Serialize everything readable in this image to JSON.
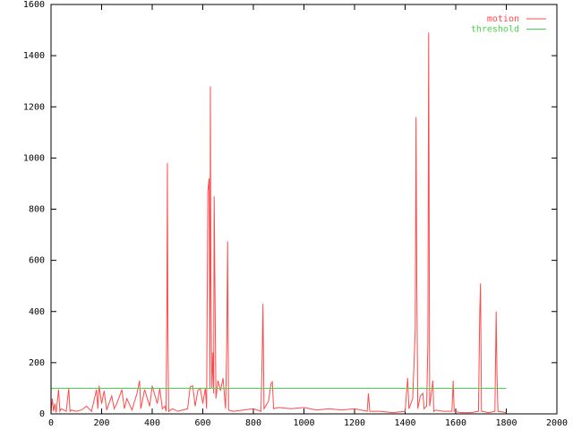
{
  "chart_data": {
    "type": "line",
    "xlim": [
      0,
      2000
    ],
    "xticks": [
      0,
      200,
      400,
      600,
      800,
      1000,
      1200,
      1400,
      1600,
      1800,
      2000
    ],
    "ylim": [
      0,
      1600
    ],
    "yticks": [
      0,
      200,
      400,
      600,
      800,
      1000,
      1200,
      1400,
      1600
    ],
    "legend": "top-right",
    "series": [
      {
        "name": "motion",
        "color": "#ff4a4a",
        "x": [
          0,
          5,
          10,
          15,
          20,
          30,
          35,
          40,
          50,
          60,
          70,
          75,
          80,
          100,
          120,
          140,
          160,
          180,
          185,
          190,
          200,
          210,
          220,
          240,
          250,
          260,
          280,
          290,
          300,
          320,
          340,
          350,
          355,
          370,
          390,
          400,
          420,
          430,
          440,
          450,
          455,
          458,
          460,
          462,
          465,
          480,
          500,
          520,
          540,
          550,
          560,
          570,
          580,
          590,
          600,
          610,
          615,
          620,
          625,
          628,
          630,
          632,
          636,
          640,
          643,
          645,
          648,
          652,
          660,
          670,
          680,
          690,
          695,
          698,
          702,
          720,
          760,
          800,
          830,
          835,
          838,
          842,
          860,
          870,
          875,
          880,
          900,
          950,
          1000,
          1050,
          1100,
          1150,
          1200,
          1250,
          1255,
          1260,
          1300,
          1350,
          1400,
          1410,
          1415,
          1430,
          1440,
          1443,
          1446,
          1450,
          1460,
          1470,
          1475,
          1485,
          1490,
          1493,
          1497,
          1510,
          1513,
          1520,
          1550,
          1585,
          1590,
          1594,
          1620,
          1660,
          1690,
          1695,
          1698,
          1702,
          1730,
          1755,
          1760,
          1763,
          1767,
          1800
        ],
        "values": [
          5,
          60,
          10,
          40,
          5,
          95,
          10,
          20,
          15,
          10,
          100,
          10,
          15,
          10,
          15,
          30,
          10,
          95,
          20,
          110,
          40,
          90,
          15,
          70,
          20,
          40,
          95,
          20,
          60,
          15,
          80,
          130,
          20,
          95,
          30,
          110,
          40,
          100,
          20,
          30,
          10,
          415,
          980,
          320,
          10,
          20,
          10,
          15,
          20,
          105,
          110,
          30,
          90,
          100,
          40,
          100,
          20,
          870,
          920,
          100,
          1280,
          530,
          100,
          240,
          80,
          850,
          500,
          60,
          130,
          90,
          140,
          20,
          280,
          675,
          15,
          10,
          15,
          20,
          10,
          235,
          430,
          20,
          50,
          120,
          125,
          20,
          25,
          20,
          25,
          15,
          20,
          15,
          20,
          10,
          80,
          10,
          10,
          5,
          10,
          140,
          20,
          60,
          330,
          1160,
          530,
          20,
          70,
          80,
          20,
          30,
          280,
          1490,
          30,
          130,
          10,
          15,
          10,
          10,
          130,
          10,
          5,
          5,
          10,
          390,
          510,
          10,
          5,
          10,
          400,
          165,
          10,
          5
        ]
      },
      {
        "name": "threshold",
        "color": "#4ad44a",
        "x": [
          0,
          1800
        ],
        "values": [
          100,
          100
        ]
      }
    ]
  }
}
